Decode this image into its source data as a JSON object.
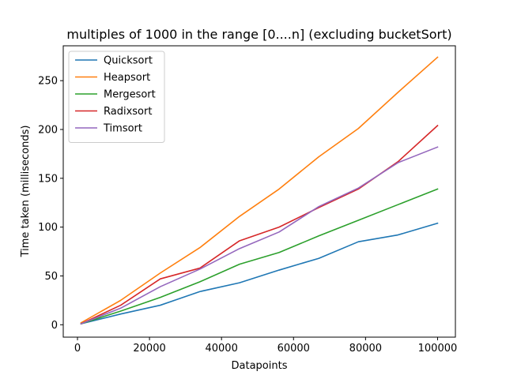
{
  "chart_data": {
    "type": "line",
    "title": "multiples of 1000 in the range [0....n] (excluding bucketSort)",
    "xlabel": "Datapoints",
    "ylabel": "Time taken (milliseconds)",
    "xlim": [
      -3950,
      104950
    ],
    "ylim": [
      -12.7,
      285.7
    ],
    "x_ticks": [
      0,
      20000,
      40000,
      60000,
      80000,
      100000
    ],
    "y_ticks": [
      0,
      50,
      100,
      150,
      200,
      250
    ],
    "grid": false,
    "legend_position": "top-left",
    "x": [
      1000,
      12000,
      23000,
      34000,
      45000,
      56000,
      67000,
      78000,
      89000,
      100000
    ],
    "series": [
      {
        "name": "Quicksort",
        "color": "#1f77b4",
        "values": [
          1,
          11,
          20,
          34,
          43,
          56,
          68,
          85,
          92,
          104
        ]
      },
      {
        "name": "Heapsort",
        "color": "#ff7f0e",
        "values": [
          2,
          25,
          53,
          79,
          111,
          139,
          172,
          201,
          238,
          274
        ]
      },
      {
        "name": "Mergesort",
        "color": "#2ca02c",
        "values": [
          1,
          14,
          28,
          44,
          62,
          74,
          91,
          107,
          123,
          139
        ]
      },
      {
        "name": "Radixsort",
        "color": "#d62728",
        "values": [
          1,
          20,
          47,
          58,
          86,
          100,
          120,
          139,
          167,
          204
        ]
      },
      {
        "name": "Timsort",
        "color": "#9467bd",
        "values": [
          1,
          17,
          39,
          57,
          78,
          95,
          121,
          140,
          166,
          182
        ]
      }
    ]
  }
}
